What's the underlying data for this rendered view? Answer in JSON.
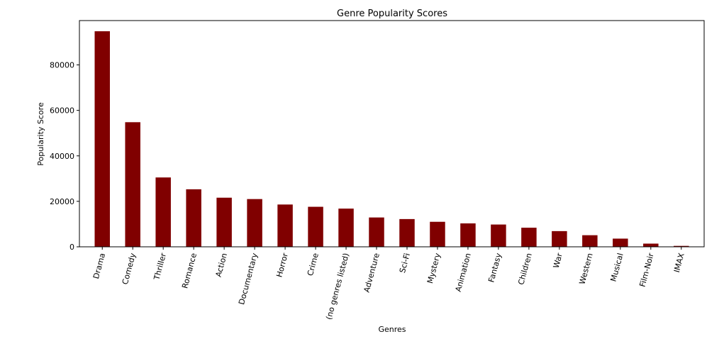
{
  "chart_data": {
    "type": "bar",
    "title": "Genre Popularity Scores",
    "xlabel": "Genres",
    "ylabel": "Popularity Score",
    "categories": [
      "Drama",
      "Comedy",
      "Thriller",
      "Romance",
      "Action",
      "Documentary",
      "Horror",
      "Crime",
      "(no genres listed)",
      "Adventure",
      "Sci-Fi",
      "Mystery",
      "Animation",
      "Fantasy",
      "Children",
      "War",
      "Western",
      "Musical",
      "Film-Noir",
      "IMAX"
    ],
    "values": [
      94800,
      54800,
      30500,
      25300,
      21600,
      21000,
      18600,
      17600,
      16800,
      12900,
      12200,
      11000,
      10300,
      9800,
      8400,
      6900,
      5100,
      3600,
      1400,
      400
    ],
    "yticks": [
      0,
      20000,
      40000,
      60000,
      80000
    ],
    "ylim": [
      0,
      99500
    ],
    "bar_color": "#800000",
    "grid": false,
    "legend": "none"
  }
}
